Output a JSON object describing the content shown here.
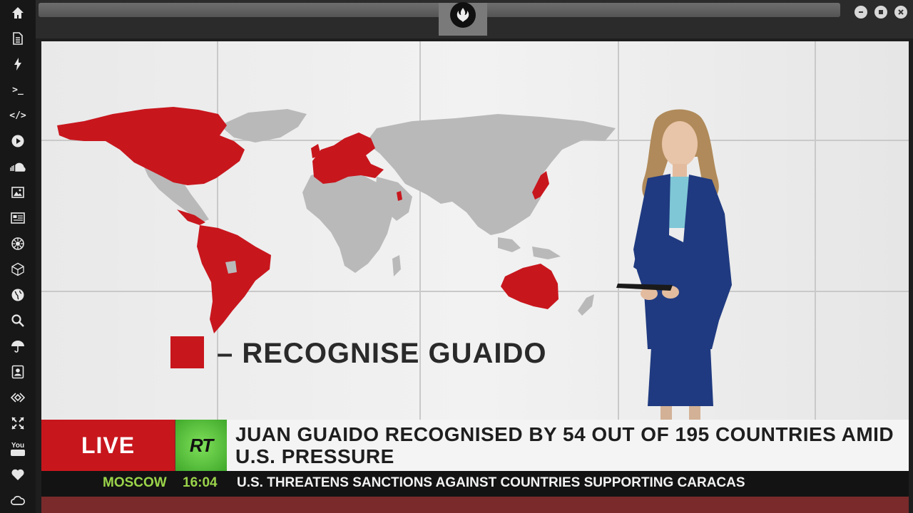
{
  "sidebar": {
    "icons": [
      "home-icon",
      "document-icon",
      "bolt-icon",
      "terminal-icon",
      "code-icon",
      "play-icon",
      "soundcloud-icon",
      "image-icon",
      "news-icon",
      "settings-icon",
      "cube-icon",
      "globe-icon",
      "search-icon",
      "umbrella-icon",
      "contact-icon",
      "code-diamond-icon",
      "expand-icon",
      "youtube-icon",
      "heart-icon",
      "cloud-icon"
    ],
    "terminal_glyph": ">_",
    "code_glyph": "</>",
    "youtube_glyph": "You"
  },
  "broadcast": {
    "legend_label": "– RECOGNISE GUAIDO",
    "legend_color": "#c8161d",
    "live_label": "LIVE",
    "channel_logo": "RT",
    "headline": "JUAN GUAIDO RECOGNISED BY 54 OUT OF 195 COUNTRIES AMID U.S. PRESSURE",
    "ticker": {
      "city": "MOSCOW",
      "time": "16:04",
      "text": "U.S. THREATENS SANCTIONS AGAINST COUNTRIES SUPPORTING CARACAS"
    }
  },
  "colors": {
    "recognise_red": "#c8161d",
    "map_grey": "#b9b9b9",
    "ticker_green": "#9bd44a",
    "rt_green": "#5cc43a"
  }
}
